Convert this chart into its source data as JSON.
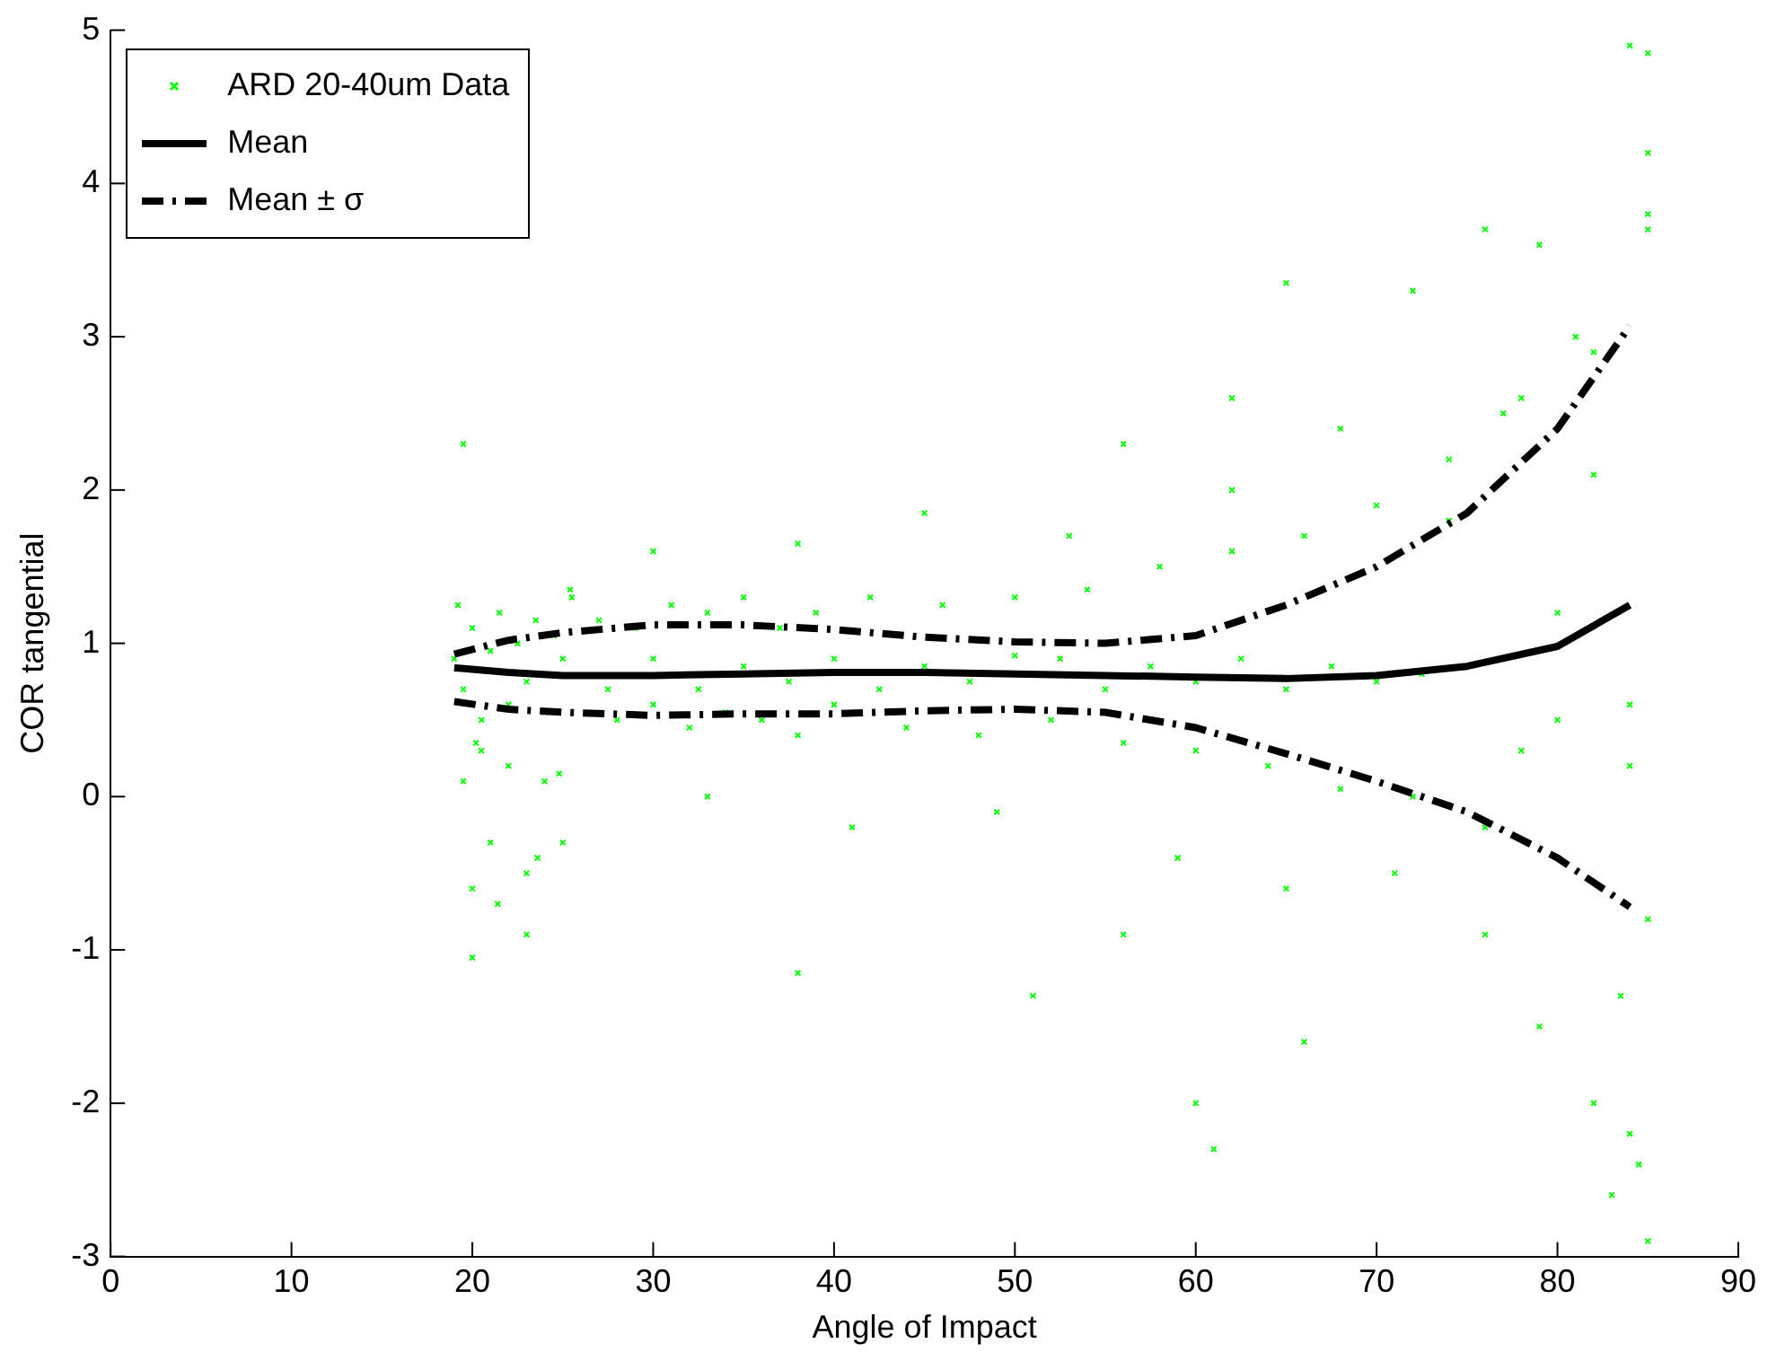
{
  "chart_data": {
    "type": "scatter",
    "xlabel": "Angle of Impact",
    "ylabel": "COR tangential",
    "xlim": [
      0,
      90
    ],
    "xticks": [
      0,
      10,
      20,
      30,
      40,
      50,
      60,
      70,
      80,
      90
    ],
    "ylim": [
      -3,
      5
    ],
    "yticks": [
      -3,
      -2,
      -1,
      0,
      1,
      2,
      3,
      4,
      5
    ],
    "grid": false,
    "legend": "top left",
    "series": [
      {
        "name": "ARD 20-40um Data",
        "marker": "cross",
        "color": "#00ff00",
        "x": [
          19,
          19.5,
          20,
          20.5,
          21,
          21.5,
          22,
          22.5,
          23,
          23.5,
          24,
          24.5,
          25,
          25.5,
          19.5,
          20,
          20.5,
          21,
          22,
          23,
          24,
          25,
          19.2,
          20.2,
          21.4,
          23.6,
          24.8,
          25.4,
          27,
          28,
          29,
          30,
          31,
          32,
          33,
          34,
          35,
          36,
          37,
          38,
          39,
          40,
          42,
          44,
          46,
          48,
          50,
          52,
          54,
          56,
          58,
          60,
          62,
          64,
          66,
          68,
          70,
          72,
          27.5,
          30,
          32.5,
          35,
          37.5,
          40,
          42.5,
          45,
          47.5,
          50,
          52.5,
          55,
          57.5,
          60,
          62.5,
          65,
          67.5,
          70,
          72.5,
          30,
          33,
          38,
          41,
          45,
          49,
          53,
          56,
          59,
          62,
          65,
          68,
          71,
          74,
          76,
          78,
          80,
          82,
          84,
          85,
          74,
          76,
          78,
          80,
          82,
          84,
          85,
          19.5,
          20,
          23,
          38,
          51,
          56,
          60,
          61,
          62,
          65,
          66,
          72,
          76,
          79,
          82,
          83,
          85,
          84,
          85,
          84.5,
          85,
          83.5,
          79,
          77,
          81,
          85,
          84
        ],
        "values": [
          0.9,
          0.7,
          1.1,
          0.5,
          0.95,
          1.2,
          0.6,
          1.0,
          0.75,
          1.15,
          0.55,
          1.05,
          0.9,
          1.3,
          0.1,
          -0.6,
          0.3,
          -0.3,
          0.2,
          -0.5,
          0.1,
          -0.3,
          1.25,
          0.35,
          -0.7,
          -0.4,
          0.15,
          1.35,
          1.15,
          0.5,
          1.1,
          0.6,
          1.25,
          0.45,
          1.2,
          0.55,
          1.3,
          0.5,
          1.1,
          0.4,
          1.2,
          0.6,
          1.3,
          0.45,
          1.25,
          0.4,
          1.3,
          0.5,
          1.35,
          0.35,
          1.5,
          0.3,
          1.6,
          0.2,
          1.7,
          0.05,
          1.9,
          0.0,
          0.7,
          0.9,
          0.7,
          0.85,
          0.75,
          0.9,
          0.7,
          0.85,
          0.75,
          0.92,
          0.9,
          0.7,
          0.85,
          0.75,
          0.9,
          0.7,
          0.85,
          0.75,
          0.8,
          1.6,
          0.0,
          1.65,
          -0.2,
          1.85,
          -0.1,
          1.7,
          2.3,
          -0.4,
          2.0,
          -0.6,
          2.4,
          -0.5,
          2.2,
          -0.9,
          2.6,
          0.5,
          2.9,
          0.2,
          3.7,
          1.8,
          -0.2,
          0.3,
          1.2,
          2.1,
          0.6,
          -0.8,
          2.3,
          -1.05,
          -0.9,
          -1.15,
          -1.3,
          -0.9,
          -2.0,
          -2.3,
          2.6,
          3.35,
          -1.6,
          3.3,
          3.7,
          3.6,
          -2.0,
          -2.6,
          -2.9,
          4.9,
          4.85,
          -2.4,
          4.2,
          -1.3,
          -1.5,
          2.5,
          3.0,
          3.8,
          -2.2
        ]
      },
      {
        "name": "Mean",
        "type": "line",
        "marker": "none",
        "line_style": "solid",
        "color": "#000000",
        "x": [
          19,
          22,
          25,
          30,
          35,
          40,
          45,
          50,
          55,
          60,
          65,
          70,
          75,
          80,
          84
        ],
        "values": [
          0.84,
          0.81,
          0.79,
          0.79,
          0.8,
          0.81,
          0.81,
          0.8,
          0.79,
          0.78,
          0.77,
          0.79,
          0.85,
          0.98,
          1.25
        ]
      },
      {
        "name": "Mean ± σ",
        "type": "line",
        "marker": "none",
        "line_style": "dashdot",
        "color": "#000000",
        "x": [
          19,
          22,
          25,
          30,
          35,
          40,
          45,
          50,
          55,
          60,
          65,
          70,
          75,
          80,
          84
        ],
        "values": [
          0.93,
          1.02,
          1.07,
          1.12,
          1.12,
          1.09,
          1.04,
          1.01,
          1.0,
          1.05,
          1.25,
          1.5,
          1.85,
          2.4,
          3.07
        ]
      },
      {
        "type": "line",
        "marker": "none",
        "line_style": "dashdot",
        "color": "#000000",
        "x": [
          19,
          22,
          25,
          30,
          35,
          40,
          45,
          50,
          55,
          60,
          65,
          70,
          75,
          80,
          84
        ],
        "values": [
          0.62,
          0.57,
          0.55,
          0.53,
          0.54,
          0.54,
          0.56,
          0.57,
          0.55,
          0.45,
          0.28,
          0.1,
          -0.1,
          -0.4,
          -0.72
        ]
      }
    ]
  }
}
